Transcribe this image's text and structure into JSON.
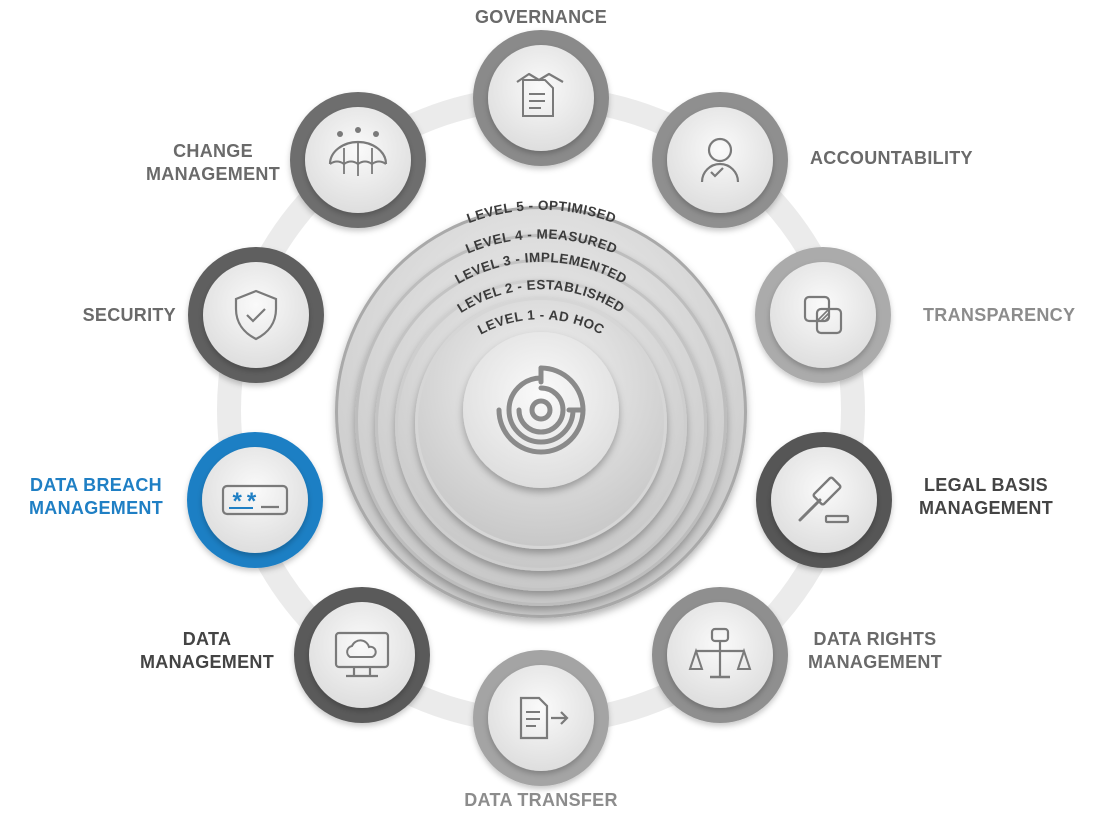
{
  "levels": [
    {
      "label": "LEVEL 5 - OPTIMISED"
    },
    {
      "label": "LEVEL 4 - MEASURED"
    },
    {
      "label": "LEVEL 3 - IMPLEMENTED"
    },
    {
      "label": "LEVEL 2 - ESTABLISHED"
    },
    {
      "label": "LEVEL 1 - AD HOC"
    }
  ],
  "core_icon": "maturity-target-icon",
  "nodes": [
    {
      "name": "governance",
      "lines": [
        "GOVERNANCE"
      ],
      "icon": "handshake-document-icon",
      "ring_color": "#8a8a8a",
      "active": false
    },
    {
      "name": "accountability",
      "lines": [
        "ACCOUNTABILITY"
      ],
      "icon": "user-check-icon",
      "ring_color": "#8f8f8f",
      "active": false
    },
    {
      "name": "transparency",
      "lines": [
        "TRANSPARENCY"
      ],
      "icon": "overlapping-squares-icon",
      "ring_color": "#ababab",
      "active": false
    },
    {
      "name": "legal-basis-management",
      "lines": [
        "LEGAL BASIS",
        "MANAGEMENT"
      ],
      "icon": "gavel-icon",
      "ring_color": "#575757",
      "active": false
    },
    {
      "name": "data-rights-management",
      "lines": [
        "DATA RIGHTS",
        "MANAGEMENT"
      ],
      "icon": "scales-fist-icon",
      "ring_color": "#8f8f8f",
      "active": false
    },
    {
      "name": "data-transfer",
      "lines": [
        "DATA TRANSFER"
      ],
      "icon": "document-arrow-icon",
      "ring_color": "#a4a4a4",
      "active": false
    },
    {
      "name": "data-management",
      "lines": [
        "DATA",
        "MANAGEMENT"
      ],
      "icon": "cloud-monitor-icon",
      "ring_color": "#5a5a5a",
      "active": false
    },
    {
      "name": "data-breach-management",
      "lines": [
        "DATA BREACH",
        "MANAGEMENT"
      ],
      "icon": "password-field-icon",
      "ring_color": "#1f7fc4",
      "active": true
    },
    {
      "name": "security",
      "lines": [
        "SECURITY"
      ],
      "icon": "shield-check-icon",
      "ring_color": "#5e5e5e",
      "active": false
    },
    {
      "name": "change-management",
      "lines": [
        "CHANGE",
        "MANAGEMENT"
      ],
      "icon": "umbrella-people-icon",
      "ring_color": "#6e6e6e",
      "active": false
    }
  ]
}
